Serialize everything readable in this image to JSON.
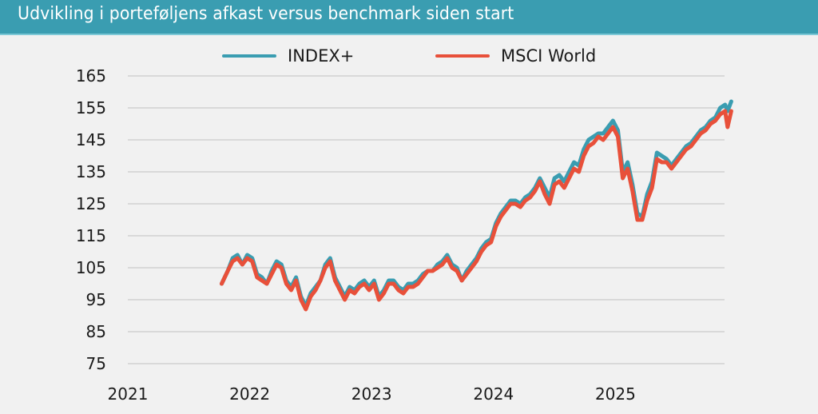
{
  "header": {
    "title": "Udvikling i porteføljens afkast versus benchmark siden start"
  },
  "legend": {
    "items": [
      {
        "label": "INDEX+",
        "color": "#3a9db1"
      },
      {
        "label": "MSCI World",
        "color": "#e8503a"
      }
    ]
  },
  "colors": {
    "header_bg": "#3a9db1",
    "index_plus": "#3a9db1",
    "msci_world": "#e8503a",
    "grid": "#d9d9d9",
    "background": "#f1f1f1"
  },
  "chart_data": {
    "type": "line",
    "title": "Udvikling i porteføljens afkast versus benchmark siden start",
    "xlabel": "",
    "ylabel": "",
    "ylim": [
      75,
      165
    ],
    "yticks": [
      165,
      155,
      145,
      135,
      125,
      115,
      105,
      95,
      85,
      75
    ],
    "xticks": [
      "2021",
      "2022",
      "2023",
      "2024",
      "2025"
    ],
    "xlim": [
      2021.0,
      2025.95
    ],
    "grid": true,
    "legend_position": "top",
    "x": [
      2021.77,
      2021.82,
      2021.86,
      2021.9,
      2021.94,
      2021.98,
      2022.02,
      2022.06,
      2022.1,
      2022.14,
      2022.18,
      2022.22,
      2022.26,
      2022.3,
      2022.34,
      2022.38,
      2022.42,
      2022.46,
      2022.5,
      2022.54,
      2022.58,
      2022.62,
      2022.66,
      2022.7,
      2022.74,
      2022.78,
      2022.82,
      2022.86,
      2022.9,
      2022.94,
      2022.98,
      2023.02,
      2023.06,
      2023.1,
      2023.14,
      2023.18,
      2023.22,
      2023.26,
      2023.3,
      2023.34,
      2023.38,
      2023.42,
      2023.46,
      2023.5,
      2023.54,
      2023.58,
      2023.62,
      2023.66,
      2023.7,
      2023.74,
      2023.78,
      2023.82,
      2023.86,
      2023.9,
      2023.94,
      2023.98,
      2024.02,
      2024.06,
      2024.1,
      2024.14,
      2024.18,
      2024.22,
      2024.26,
      2024.3,
      2024.34,
      2024.38,
      2024.42,
      2024.46,
      2024.5,
      2024.54,
      2024.58,
      2024.62,
      2024.66,
      2024.7,
      2024.74,
      2024.78,
      2024.82,
      2024.86,
      2024.9,
      2024.94,
      2024.98,
      2025.02,
      2025.06,
      2025.1,
      2025.14,
      2025.18,
      2025.22,
      2025.26,
      2025.3,
      2025.34,
      2025.38,
      2025.42,
      2025.46,
      2025.5,
      2025.54,
      2025.58,
      2025.62,
      2025.66,
      2025.7,
      2025.74,
      2025.78,
      2025.82,
      2025.86,
      2025.9,
      2025.92,
      2025.95
    ],
    "series": [
      {
        "name": "INDEX+",
        "color": "#3a9db1",
        "values": [
          100,
          104,
          108,
          109,
          106,
          109,
          108,
          103,
          102,
          100,
          104,
          107,
          106,
          101,
          99,
          102,
          96,
          93,
          97,
          99,
          101,
          106,
          108,
          102,
          99,
          96,
          99,
          98,
          100,
          101,
          99,
          101,
          96,
          98,
          101,
          101,
          99,
          98,
          100,
          100,
          101,
          103,
          104,
          104,
          106,
          107,
          109,
          106,
          105,
          101,
          104,
          106,
          108,
          111,
          113,
          114,
          119,
          122,
          124,
          126,
          126,
          125,
          127,
          128,
          130,
          133,
          130,
          127,
          133,
          134,
          132,
          135,
          138,
          137,
          142,
          145,
          146,
          147,
          147,
          149,
          151,
          148,
          135,
          138,
          131,
          122,
          121,
          128,
          132,
          141,
          140,
          139,
          137,
          139,
          141,
          143,
          144,
          146,
          148,
          149,
          151,
          152,
          155,
          156,
          154,
          157
        ]
      },
      {
        "name": "MSCI World",
        "color": "#e8503a",
        "values": [
          100,
          104,
          107,
          108,
          106,
          108,
          107,
          102,
          101,
          100,
          103,
          106,
          105,
          100,
          98,
          101,
          95,
          92,
          96,
          98,
          101,
          105,
          107,
          101,
          98,
          95,
          98,
          97,
          99,
          100,
          98,
          100,
          95,
          97,
          100,
          100,
          98,
          97,
          99,
          99,
          100,
          102,
          104,
          104,
          105,
          106,
          108,
          105,
          104,
          101,
          103,
          105,
          107,
          110,
          112,
          113,
          118,
          121,
          123,
          125,
          125,
          124,
          126,
          127,
          129,
          132,
          128,
          125,
          131,
          132,
          130,
          133,
          136,
          135,
          140,
          143,
          144,
          146,
          145,
          147,
          149,
          146,
          133,
          136,
          129,
          120,
          120,
          126,
          130,
          139,
          138,
          138,
          136,
          138,
          140,
          142,
          143,
          145,
          147,
          148,
          150,
          151,
          153,
          154,
          149,
          154
        ]
      }
    ]
  }
}
